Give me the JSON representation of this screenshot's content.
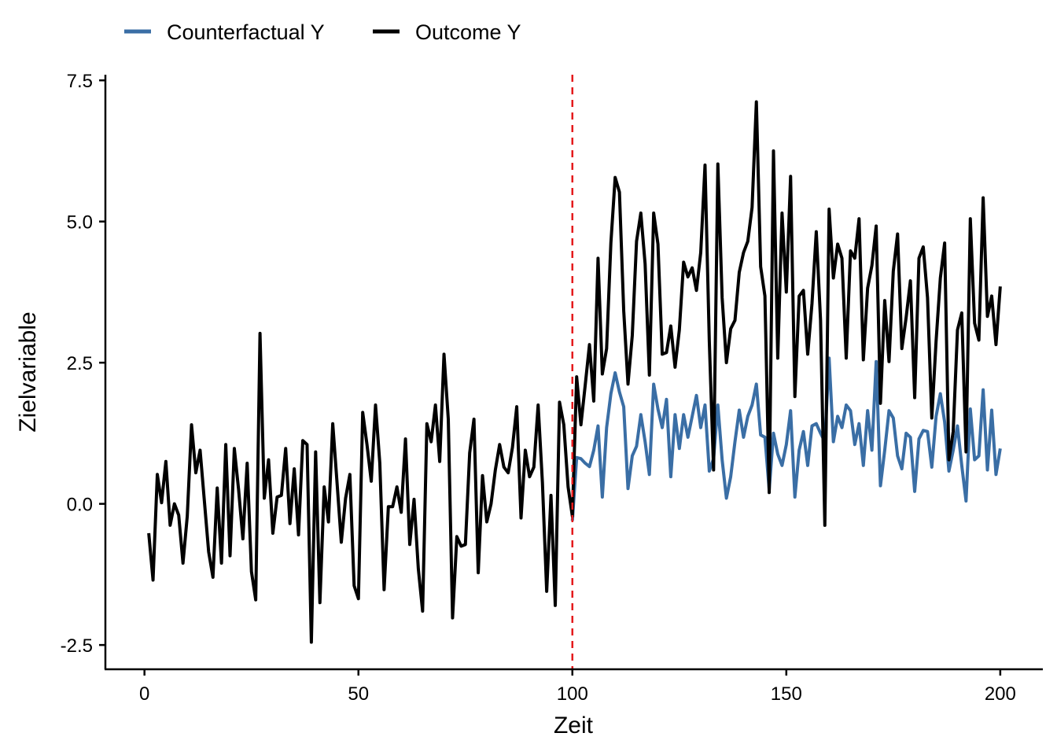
{
  "chart_data": {
    "type": "line",
    "title": "",
    "xlabel": "Zeit",
    "ylabel": "Zielvariable",
    "xlim": [
      -8.95,
      209.95
    ],
    "ylim": [
      -2.93,
      7.6
    ],
    "x_ticks": [
      0,
      50,
      100,
      150,
      200
    ],
    "x_tick_labels": [
      "0",
      "50",
      "100",
      "150",
      "200"
    ],
    "y_ticks": [
      -2.5,
      0,
      2.5,
      5,
      7.5
    ],
    "y_tick_labels": [
      "-2.5",
      "0.0",
      "2.5",
      "5.0",
      "7.5"
    ],
    "grid": false,
    "legend_position": "top-left",
    "intervention_line": {
      "x": 100,
      "color": "#e41a1c",
      "style": "dashed"
    },
    "series": [
      {
        "name": "Counterfactual Y",
        "color": "#3a6ea5",
        "x_start": 100,
        "values": [
          -0.3,
          0.82,
          0.8,
          0.72,
          0.66,
          0.95,
          1.38,
          0.12,
          1.35,
          1.95,
          2.32,
          1.98,
          1.72,
          0.27,
          0.85,
          1.02,
          1.58,
          1.1,
          0.52,
          2.12,
          1.68,
          1.35,
          1.85,
          0.48,
          1.58,
          0.98,
          1.58,
          1.18,
          1.55,
          1.92,
          1.35,
          1.75,
          0.58,
          0.8,
          1.75,
          0.78,
          0.1,
          0.48,
          1.1,
          1.66,
          1.18,
          1.55,
          1.75,
          2.12,
          1.22,
          1.18,
          0.25,
          1.25,
          0.88,
          0.68,
          1.05,
          1.65,
          0.12,
          0.95,
          1.28,
          0.68,
          1.38,
          1.42,
          1.25,
          1.1,
          2.58,
          1.1,
          1.55,
          1.35,
          1.75,
          1.65,
          1.05,
          1.42,
          0.68,
          1.65,
          0.95,
          2.52,
          0.32,
          0.95,
          1.65,
          1.52,
          0.85,
          0.62,
          1.25,
          1.18,
          0.22,
          1.15,
          1.3,
          1.28,
          0.65,
          1.55,
          1.95,
          1.45,
          0.58,
          0.95,
          1.38,
          0.68,
          0.05,
          1.68,
          0.78,
          0.85,
          2.02,
          0.6,
          1.66,
          0.52,
          0.98
        ]
      },
      {
        "name": "Outcome Y",
        "color": "#000000",
        "x_start": 1,
        "values": [
          -0.52,
          -1.35,
          0.52,
          0.02,
          0.75,
          -0.38,
          0.0,
          -0.2,
          -1.05,
          -0.22,
          1.4,
          0.55,
          0.95,
          0.05,
          -0.85,
          -1.3,
          0.28,
          -1.05,
          1.05,
          -0.92,
          0.98,
          0.25,
          -0.62,
          0.72,
          -1.2,
          -1.7,
          3.02,
          0.1,
          0.78,
          -0.52,
          0.12,
          0.15,
          0.98,
          -0.35,
          0.62,
          -0.55,
          1.12,
          1.05,
          -2.45,
          0.92,
          -1.75,
          0.3,
          -0.32,
          1.42,
          0.38,
          -0.68,
          0.1,
          0.52,
          -1.45,
          -1.68,
          1.62,
          1.05,
          0.4,
          1.75,
          0.72,
          -1.52,
          -0.05,
          -0.05,
          0.3,
          -0.15,
          1.15,
          -0.72,
          0.08,
          -1.15,
          -1.9,
          1.42,
          1.1,
          1.75,
          0.75,
          2.65,
          1.5,
          -2.02,
          -0.58,
          -0.75,
          -0.72,
          0.9,
          1.5,
          -1.22,
          0.5,
          -0.32,
          0.0,
          0.6,
          1.05,
          0.65,
          0.55,
          1.0,
          1.72,
          -0.25,
          0.95,
          0.48,
          0.65,
          1.75,
          0.38,
          -1.55,
          0.15,
          -1.8,
          1.8,
          1.4,
          0.3,
          -0.22,
          2.25,
          1.4,
          2.1,
          2.82,
          1.82,
          4.35,
          2.3,
          2.75,
          4.62,
          5.78,
          5.52,
          3.42,
          2.12,
          2.98,
          4.65,
          5.15,
          4.25,
          2.28,
          5.15,
          4.6,
          2.65,
          2.68,
          3.15,
          2.42,
          3.08,
          4.28,
          4.02,
          4.18,
          3.78,
          4.45,
          6.0,
          2.88,
          0.6,
          6.02,
          3.65,
          2.5,
          3.1,
          3.25,
          4.1,
          4.45,
          4.65,
          5.25,
          7.12,
          4.2,
          3.68,
          0.2,
          6.25,
          2.58,
          5.15,
          3.75,
          5.8,
          1.9,
          3.68,
          3.78,
          2.65,
          3.55,
          4.82,
          3.25,
          -0.38,
          5.22,
          4.0,
          4.6,
          4.35,
          2.58,
          4.48,
          4.35,
          5.05,
          2.55,
          3.82,
          4.22,
          4.92,
          1.78,
          3.6,
          2.52,
          4.12,
          4.78,
          2.75,
          3.3,
          3.95,
          1.88,
          4.35,
          4.55,
          3.65,
          1.52,
          2.88,
          4.0,
          4.62,
          0.78,
          1.28,
          3.08,
          3.38,
          0.92,
          5.05,
          3.2,
          2.9,
          5.42,
          3.32,
          3.68,
          2.82,
          3.85
        ]
      }
    ]
  }
}
